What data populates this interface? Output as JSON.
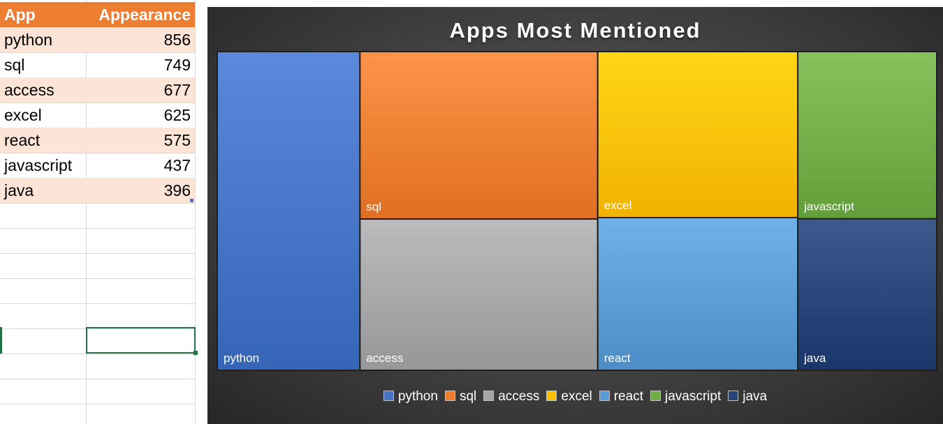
{
  "sheet": {
    "header": {
      "app": "App",
      "appearance": "Appearance"
    },
    "rows": [
      {
        "app": "python",
        "value": "856"
      },
      {
        "app": "sql",
        "value": "749"
      },
      {
        "app": "access",
        "value": "677"
      },
      {
        "app": "excel",
        "value": "625"
      },
      {
        "app": "react",
        "value": "575"
      },
      {
        "app": "javascript",
        "value": "437"
      },
      {
        "app": "java",
        "value": "396"
      }
    ],
    "header_color": "#ed7d31",
    "band_color": "#fce4d6"
  },
  "chart_data": {
    "type": "treemap",
    "title": "Apps Most Mentioned",
    "categories": [
      "python",
      "sql",
      "access",
      "excel",
      "react",
      "javascript",
      "java"
    ],
    "values": [
      856,
      749,
      677,
      625,
      575,
      437,
      396
    ],
    "colors": [
      "#4472c4",
      "#ed7d31",
      "#a5a5a5",
      "#ffc000",
      "#5b9bd5",
      "#70ad47",
      "#264478"
    ],
    "legend_position": "bottom",
    "background": "dark-gradient"
  }
}
